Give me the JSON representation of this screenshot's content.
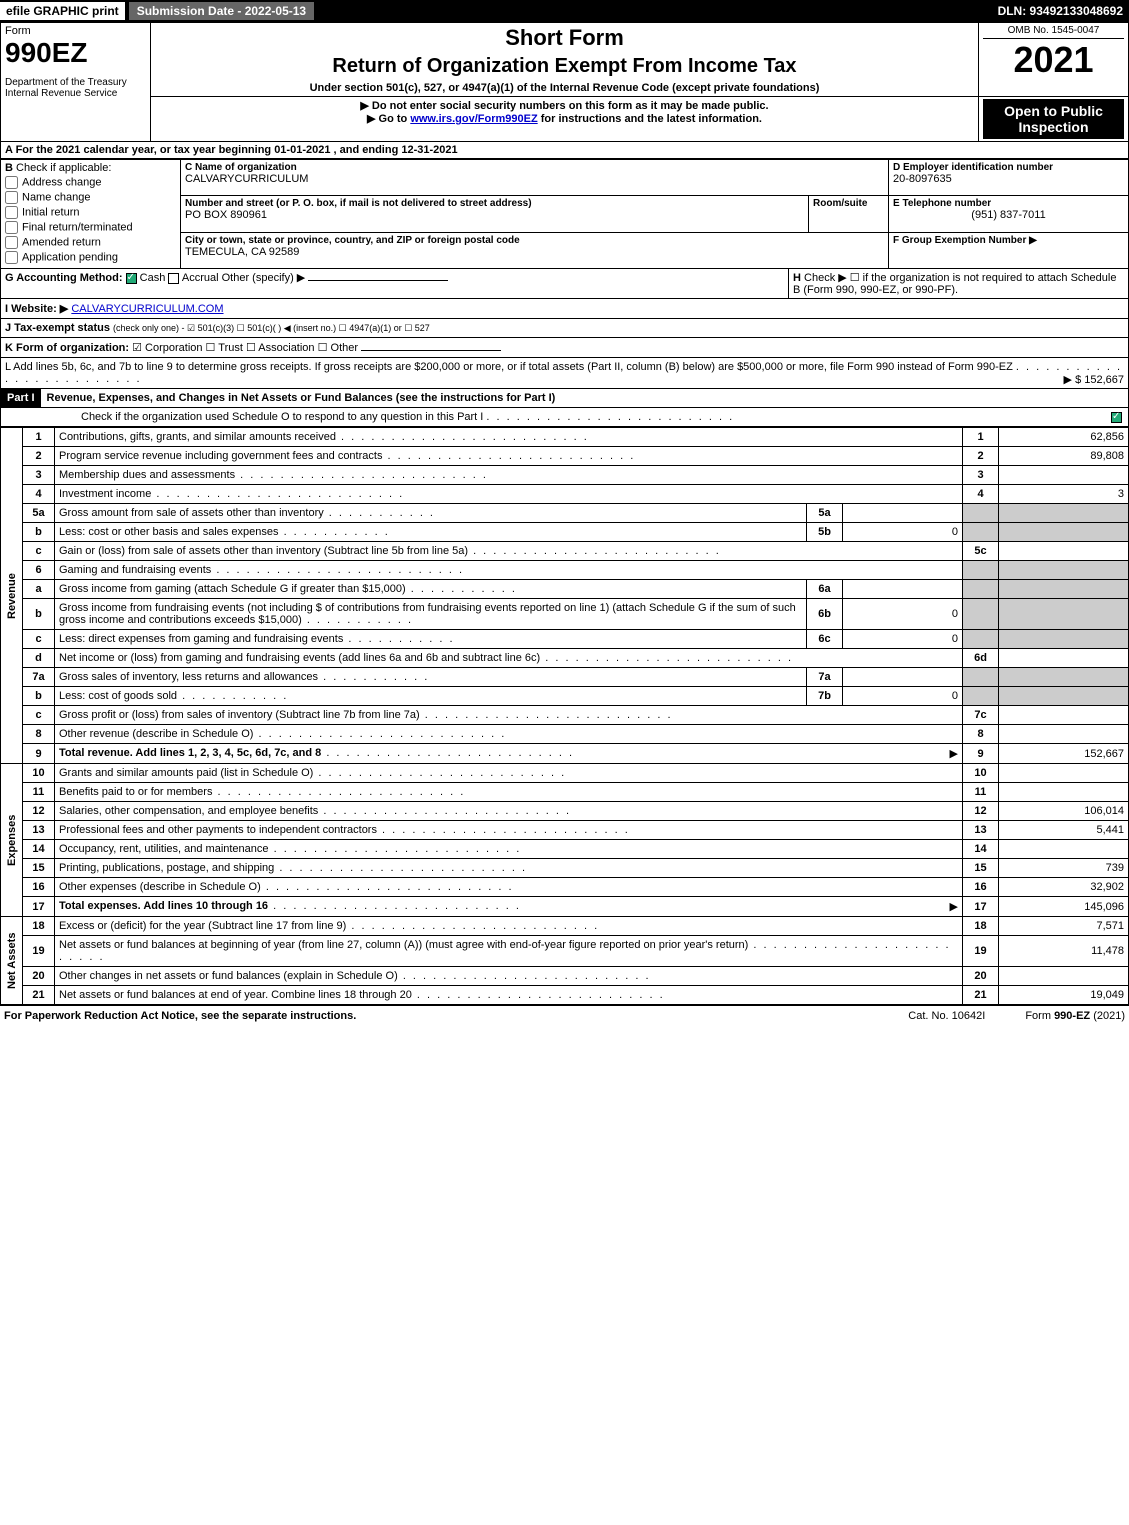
{
  "topbar": {
    "efile": "efile GRAPHIC print",
    "submission": "Submission Date - 2022-05-13",
    "dln": "DLN: 93492133048692"
  },
  "header": {
    "form_word": "Form",
    "form_number": "990EZ",
    "dept": "Department of the Treasury",
    "irs": "Internal Revenue Service",
    "short_form": "Short Form",
    "title": "Return of Organization Exempt From Income Tax",
    "under": "Under section 501(c), 527, or 4947(a)(1) of the Internal Revenue Code (except private foundations)",
    "ssn_note": "▶ Do not enter social security numbers on this form as it may be made public.",
    "goto": "▶ Go to ",
    "goto_link": "www.irs.gov/Form990EZ",
    "goto_tail": " for instructions and the latest information.",
    "omb": "OMB No. 1545-0047",
    "year": "2021",
    "open": "Open to Public Inspection"
  },
  "sectionA": "A  For the 2021 calendar year, or tax year beginning 01-01-2021 , and ending 12-31-2021",
  "sectionB": {
    "label": "B",
    "check_if": "Check if applicable:",
    "items": [
      "Address change",
      "Name change",
      "Initial return",
      "Final return/terminated",
      "Amended return",
      "Application pending"
    ]
  },
  "sectionC": {
    "name_label": "C Name of organization",
    "name": "CALVARYCURRICULUM",
    "addr_label": "Number and street (or P. O. box, if mail is not delivered to street address)",
    "room_label": "Room/suite",
    "addr": "PO BOX 890961",
    "city_label": "City or town, state or province, country, and ZIP or foreign postal code",
    "city": "TEMECULA, CA  92589"
  },
  "sectionD": {
    "label": "D Employer identification number",
    "value": "20-8097635"
  },
  "sectionE": {
    "label": "E Telephone number",
    "value": "(951) 837-7011"
  },
  "sectionF": {
    "label": "F Group Exemption Number  ▶"
  },
  "sectionG": {
    "label": "G Accounting Method:",
    "cash": "Cash",
    "accrual": "Accrual",
    "other": "Other (specify) ▶"
  },
  "sectionH": {
    "label": "H",
    "text": "Check ▶ ☐ if the organization is not required to attach Schedule B (Form 990, 990-EZ, or 990-PF)."
  },
  "sectionI": {
    "label": "I Website: ▶",
    "value": "CALVARYCURRICULUM.COM"
  },
  "sectionJ": {
    "label": "J Tax-exempt status",
    "tail": "(check only one) - ☑ 501(c)(3) ☐ 501(c)(  ) ◀ (insert no.) ☐ 4947(a)(1) or ☐ 527"
  },
  "sectionK": {
    "label": "K Form of organization:",
    "items": "☑ Corporation  ☐ Trust  ☐ Association  ☐ Other"
  },
  "sectionL": {
    "text": "L Add lines 5b, 6c, and 7b to line 9 to determine gross receipts. If gross receipts are $200,000 or more, or if total assets (Part II, column (B) below) are $500,000 or more, file Form 990 instead of Form 990-EZ",
    "value": "▶ $ 152,667"
  },
  "partI": {
    "header": "Part I",
    "title": "Revenue, Expenses, and Changes in Net Assets or Fund Balances (see the instructions for Part I)",
    "check_note": "Check if the organization used Schedule O to respond to any question in this Part I"
  },
  "revenue": {
    "label": "Revenue",
    "lines": [
      {
        "num": "1",
        "desc": "Contributions, gifts, grants, and similar amounts received",
        "rnum": "1",
        "rval": "62,856"
      },
      {
        "num": "2",
        "desc": "Program service revenue including government fees and contracts",
        "rnum": "2",
        "rval": "89,808"
      },
      {
        "num": "3",
        "desc": "Membership dues and assessments",
        "rnum": "3",
        "rval": ""
      },
      {
        "num": "4",
        "desc": "Investment income",
        "rnum": "4",
        "rval": "3"
      },
      {
        "num": "5a",
        "desc": "Gross amount from sale of assets other than inventory",
        "inum": "5a",
        "ival": ""
      },
      {
        "num": "b",
        "desc": "Less: cost or other basis and sales expenses",
        "inum": "5b",
        "ival": "0"
      },
      {
        "num": "c",
        "desc": "Gain or (loss) from sale of assets other than inventory (Subtract line 5b from line 5a)",
        "rnum": "5c",
        "rval": ""
      },
      {
        "num": "6",
        "desc": "Gaming and fundraising events"
      },
      {
        "num": "a",
        "desc": "Gross income from gaming (attach Schedule G if greater than $15,000)",
        "inum": "6a",
        "ival": ""
      },
      {
        "num": "b",
        "desc": "Gross income from fundraising events (not including $                   of contributions from fundraising events reported on line 1) (attach Schedule G if the sum of such gross income and contributions exceeds $15,000)",
        "inum": "6b",
        "ival": "0"
      },
      {
        "num": "c",
        "desc": "Less: direct expenses from gaming and fundraising events",
        "inum": "6c",
        "ival": "0"
      },
      {
        "num": "d",
        "desc": "Net income or (loss) from gaming and fundraising events (add lines 6a and 6b and subtract line 6c)",
        "rnum": "6d",
        "rval": ""
      },
      {
        "num": "7a",
        "desc": "Gross sales of inventory, less returns and allowances",
        "inum": "7a",
        "ival": ""
      },
      {
        "num": "b",
        "desc": "Less: cost of goods sold",
        "inum": "7b",
        "ival": "0"
      },
      {
        "num": "c",
        "desc": "Gross profit or (loss) from sales of inventory (Subtract line 7b from line 7a)",
        "rnum": "7c",
        "rval": ""
      },
      {
        "num": "8",
        "desc": "Other revenue (describe in Schedule O)",
        "rnum": "8",
        "rval": ""
      },
      {
        "num": "9",
        "desc": "Total revenue. Add lines 1, 2, 3, 4, 5c, 6d, 7c, and 8",
        "rnum": "9",
        "rval": "152,667",
        "bold": true,
        "arrow": true
      }
    ]
  },
  "expenses": {
    "label": "Expenses",
    "lines": [
      {
        "num": "10",
        "desc": "Grants and similar amounts paid (list in Schedule O)",
        "rnum": "10",
        "rval": ""
      },
      {
        "num": "11",
        "desc": "Benefits paid to or for members",
        "rnum": "11",
        "rval": ""
      },
      {
        "num": "12",
        "desc": "Salaries, other compensation, and employee benefits",
        "rnum": "12",
        "rval": "106,014"
      },
      {
        "num": "13",
        "desc": "Professional fees and other payments to independent contractors",
        "rnum": "13",
        "rval": "5,441"
      },
      {
        "num": "14",
        "desc": "Occupancy, rent, utilities, and maintenance",
        "rnum": "14",
        "rval": ""
      },
      {
        "num": "15",
        "desc": "Printing, publications, postage, and shipping",
        "rnum": "15",
        "rval": "739"
      },
      {
        "num": "16",
        "desc": "Other expenses (describe in Schedule O)",
        "rnum": "16",
        "rval": "32,902"
      },
      {
        "num": "17",
        "desc": "Total expenses. Add lines 10 through 16",
        "rnum": "17",
        "rval": "145,096",
        "bold": true,
        "arrow": true
      }
    ]
  },
  "netassets": {
    "label": "Net Assets",
    "lines": [
      {
        "num": "18",
        "desc": "Excess or (deficit) for the year (Subtract line 17 from line 9)",
        "rnum": "18",
        "rval": "7,571"
      },
      {
        "num": "19",
        "desc": "Net assets or fund balances at beginning of year (from line 27, column (A)) (must agree with end-of-year figure reported on prior year's return)",
        "rnum": "19",
        "rval": "11,478"
      },
      {
        "num": "20",
        "desc": "Other changes in net assets or fund balances (explain in Schedule O)",
        "rnum": "20",
        "rval": ""
      },
      {
        "num": "21",
        "desc": "Net assets or fund balances at end of year. Combine lines 18 through 20",
        "rnum": "21",
        "rval": "19,049"
      }
    ]
  },
  "footer": {
    "left": "For Paperwork Reduction Act Notice, see the separate instructions.",
    "mid": "Cat. No. 10642I",
    "right_pre": "Form ",
    "right_bold": "990-EZ",
    "right_post": " (2021)"
  },
  "colors": {
    "black": "#000000",
    "white": "#ffffff",
    "grey_fill": "#cccccc",
    "link": "#0000cc"
  }
}
